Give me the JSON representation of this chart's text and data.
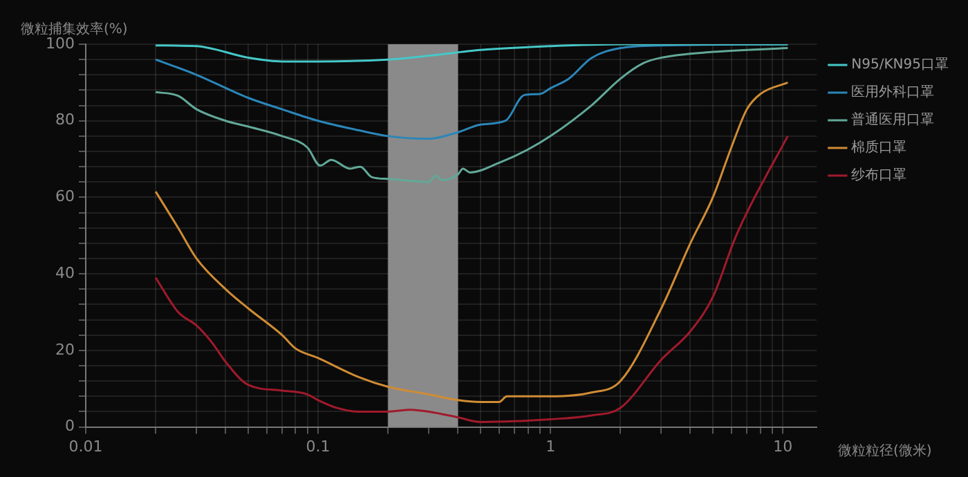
{
  "chart_data": {
    "type": "line",
    "ylabel": "微粒捕集效率(%)",
    "xlabel": "微粒粒径(微米)",
    "log": "x",
    "xlim": [
      0.01,
      14
    ],
    "ylim": [
      0,
      100
    ],
    "xticks": [
      0.01,
      {
        "value": 0.02,
        "label": null
      },
      {
        "value": 0.03,
        "label": null
      },
      {
        "value": 0.04,
        "label": null
      },
      {
        "value": 0.05,
        "label": null
      },
      {
        "value": 0.06,
        "label": null
      },
      {
        "value": 0.07,
        "label": null
      },
      {
        "value": 0.08,
        "label": null
      },
      {
        "value": 0.09,
        "label": null
      },
      0.1,
      {
        "value": 0.2,
        "label": null
      },
      {
        "value": 0.3,
        "label": null
      },
      {
        "value": 0.4,
        "label": null
      },
      {
        "value": 0.5,
        "label": null
      },
      {
        "value": 0.6,
        "label": null
      },
      {
        "value": 0.7,
        "label": null
      },
      {
        "value": 0.8,
        "label": null
      },
      {
        "value": 0.9,
        "label": null
      },
      1,
      {
        "value": 2,
        "label": null
      },
      {
        "value": 3,
        "label": null
      },
      {
        "value": 4,
        "label": null
      },
      {
        "value": 5,
        "label": null
      },
      {
        "value": 6,
        "label": null
      },
      {
        "value": 7,
        "label": null
      },
      {
        "value": 8,
        "label": null
      },
      {
        "value": 9,
        "label": null
      },
      10
    ],
    "yticks": [
      0,
      {
        "value": 4,
        "label": null
      },
      {
        "value": 8,
        "label": null
      },
      {
        "value": 12,
        "label": null
      },
      {
        "value": 16,
        "label": null
      },
      20,
      {
        "value": 24,
        "label": null
      },
      {
        "value": 28,
        "label": null
      },
      {
        "value": 32,
        "label": null
      },
      {
        "value": 36,
        "label": null
      },
      40,
      {
        "value": 44,
        "label": null
      },
      {
        "value": 48,
        "label": null
      },
      {
        "value": 52,
        "label": null
      },
      {
        "value": 56,
        "label": null
      },
      60,
      {
        "value": 64,
        "label": null
      },
      {
        "value": 68,
        "label": null
      },
      {
        "value": 72,
        "label": null
      },
      {
        "value": 76,
        "label": null
      },
      80,
      {
        "value": 84,
        "label": null
      },
      {
        "value": 88,
        "label": null
      },
      {
        "value": 92,
        "label": null
      },
      {
        "value": 96,
        "label": null
      },
      100
    ],
    "grid": true,
    "legend": "top right",
    "marker": "none",
    "line_style": "solid",
    "bands": [
      {
        "axis": "x",
        "from": 0.2,
        "to": 0.4,
        "color": "#8a8a8a"
      }
    ],
    "series": [
      {
        "name": "N95/KN95口罩",
        "color": "#46c8c8",
        "x": [
          0.02,
          0.03,
          0.05,
          0.07,
          0.1,
          0.2,
          0.3,
          0.5,
          1,
          2,
          10.5
        ],
        "values": [
          99.7,
          99.5,
          96.5,
          95.5,
          95.5,
          96,
          97,
          98.5,
          99.5,
          100,
          100
        ]
      },
      {
        "name": "医用外科口罩",
        "color": "#2b86b8",
        "x": [
          0.02,
          0.03,
          0.05,
          0.07,
          0.1,
          0.15,
          0.2,
          0.3,
          0.4,
          0.5,
          0.64,
          0.77,
          0.9,
          1,
          1.2,
          1.5,
          2,
          3,
          10.5
        ],
        "values": [
          96,
          92,
          86,
          83,
          80,
          77.5,
          76,
          75.3,
          77,
          79,
          80,
          86.7,
          87,
          88.5,
          91,
          96.4,
          99,
          99.7,
          100
        ]
      },
      {
        "name": "普通医用口罩",
        "color": "#62a898",
        "x": [
          0.02,
          0.025,
          0.03,
          0.04,
          0.05,
          0.07,
          0.09,
          0.102,
          0.114,
          0.137,
          0.152,
          0.17,
          0.2,
          0.3,
          0.32,
          0.34,
          0.4,
          0.42,
          0.45,
          0.6,
          0.8,
          1,
          1.5,
          2,
          2.5,
          3,
          5,
          10.5
        ],
        "values": [
          87.5,
          86.5,
          83,
          80,
          78.5,
          76,
          73,
          68.3,
          69.8,
          67.5,
          68,
          65.3,
          64.8,
          64,
          65.7,
          64.5,
          66,
          67.5,
          66.5,
          69,
          72.5,
          76,
          84,
          91,
          95,
          96.5,
          98,
          99
        ]
      },
      {
        "name": "棉质口罩",
        "color": "#d08c34",
        "x": [
          0.02,
          0.025,
          0.03,
          0.04,
          0.05,
          0.07,
          0.08,
          0.1,
          0.15,
          0.2,
          0.3,
          0.4,
          0.5,
          0.6,
          0.65,
          1,
          1.5,
          2,
          3,
          4,
          5,
          6,
          7,
          8,
          10.5
        ],
        "values": [
          61.5,
          52,
          44,
          36,
          31,
          24,
          20.5,
          18,
          13,
          10.5,
          8.5,
          7,
          6.5,
          6.5,
          8,
          8,
          9,
          12,
          31,
          48,
          60,
          73,
          83,
          87,
          90
        ]
      },
      {
        "name": "纱布口罩",
        "color": "#a01a2c",
        "x": [
          0.02,
          0.025,
          0.03,
          0.035,
          0.04,
          0.05,
          0.07,
          0.09,
          0.1,
          0.12,
          0.15,
          0.2,
          0.25,
          0.3,
          0.4,
          0.5,
          0.7,
          1,
          1.5,
          2,
          3,
          4,
          5,
          6.2,
          7,
          10.5
        ],
        "values": [
          39,
          30,
          26.5,
          22,
          17,
          11,
          9.5,
          8.5,
          7,
          5,
          4,
          4,
          4.5,
          4,
          2.5,
          1.3,
          1.5,
          2,
          3,
          5,
          17.6,
          25,
          34,
          49,
          56,
          76
        ]
      }
    ]
  }
}
